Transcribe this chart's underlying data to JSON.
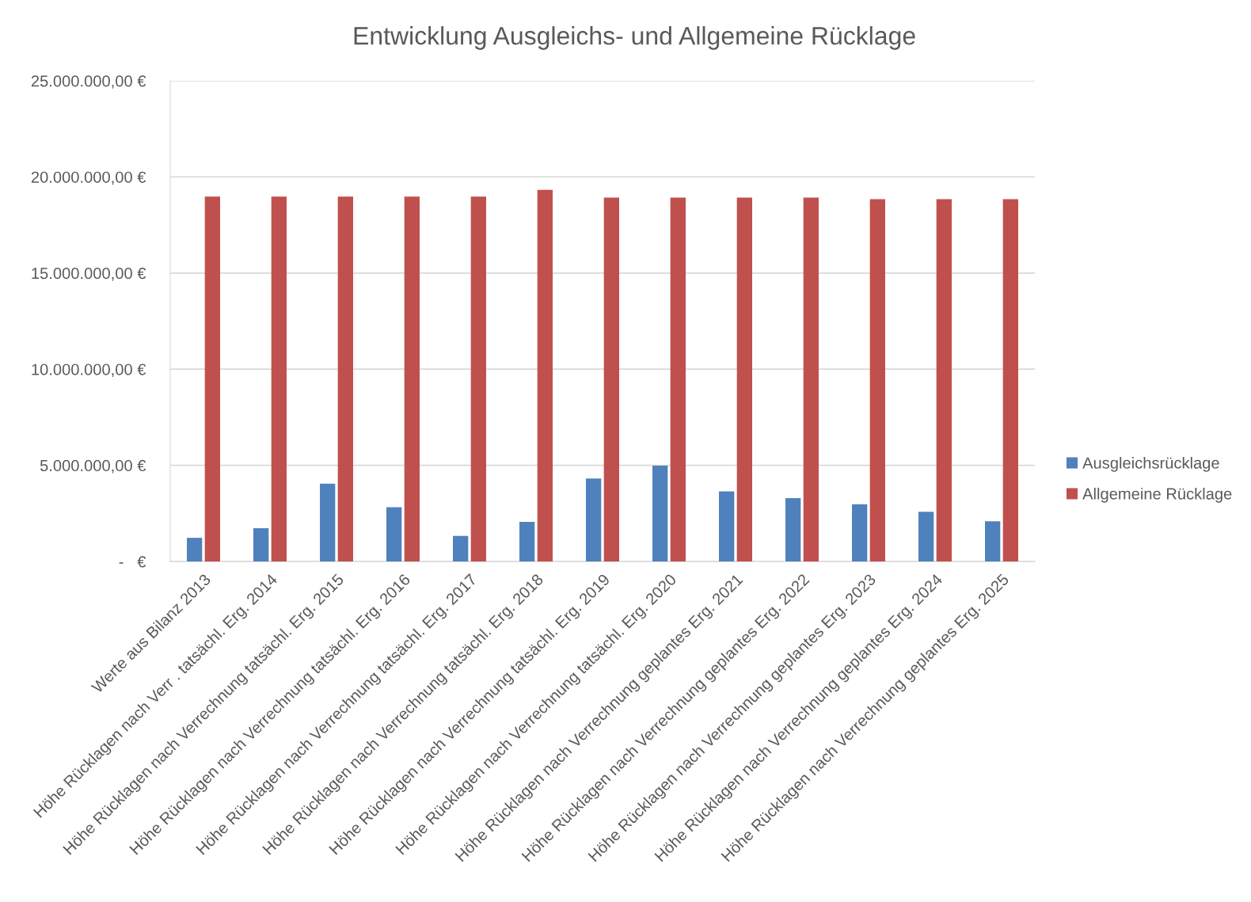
{
  "chart_data": {
    "type": "bar",
    "title": "Entwicklung Ausgleichs- und Allgemeine Rücklage",
    "categories": [
      "Werte aus Bilanz 2013",
      "Höhe Rücklagen nach Verr . tatsächl. Erg. 2014",
      "Höhe Rücklagen nach Verrechnung tatsächl. Erg. 2015",
      "Höhe Rücklagen nach Verrechnung tatsächl. Erg. 2016",
      "Höhe Rücklagen nach Verrechnung tatsächl. Erg. 2017",
      "Höhe Rücklagen nach Verrechnung tatsächl. Erg. 2018",
      "Höhe Rücklagen nach Verrechnung tatsächl. Erg. 2019",
      "Höhe Rücklagen nach Verrechnung tatsächl. Erg. 2020",
      "Höhe Rücklagen nach Verrechnung geplantes Erg. 2021",
      "Höhe Rücklagen nach Verrechnung geplantes Erg. 2022",
      "Höhe Rücklagen nach Verrechnung geplantes Erg. 2023",
      "Höhe Rücklagen nach Verrechnung geplantes Erg. 2024",
      "Höhe Rücklagen nach Verrechnung geplantes Erg. 2025"
    ],
    "series": [
      {
        "name": "Ausgleichsrücklage",
        "color": "#4f81bd",
        "values": [
          1230000,
          1730000,
          4050000,
          2820000,
          1330000,
          2060000,
          4310000,
          4980000,
          3640000,
          3300000,
          2980000,
          2580000,
          2090000
        ]
      },
      {
        "name": "Allgemeine Rücklage",
        "color": "#c0504d",
        "values": [
          18980000,
          18980000,
          18980000,
          18980000,
          18980000,
          19330000,
          18920000,
          18920000,
          18920000,
          18920000,
          18840000,
          18840000,
          18840000
        ]
      }
    ],
    "ylim": [
      0,
      25000000
    ],
    "yticks": [
      {
        "value": 0,
        "label": "-   €"
      },
      {
        "value": 5000000,
        "label": "5.000.000,00 €"
      },
      {
        "value": 10000000,
        "label": "10.000.000,00 €"
      },
      {
        "value": 15000000,
        "label": "15.000.000,00 €"
      },
      {
        "value": 20000000,
        "label": "20.000.000,00 €"
      },
      {
        "value": 25000000,
        "label": "25.000.000,00 €"
      }
    ],
    "grid": "y",
    "legend": "right"
  }
}
